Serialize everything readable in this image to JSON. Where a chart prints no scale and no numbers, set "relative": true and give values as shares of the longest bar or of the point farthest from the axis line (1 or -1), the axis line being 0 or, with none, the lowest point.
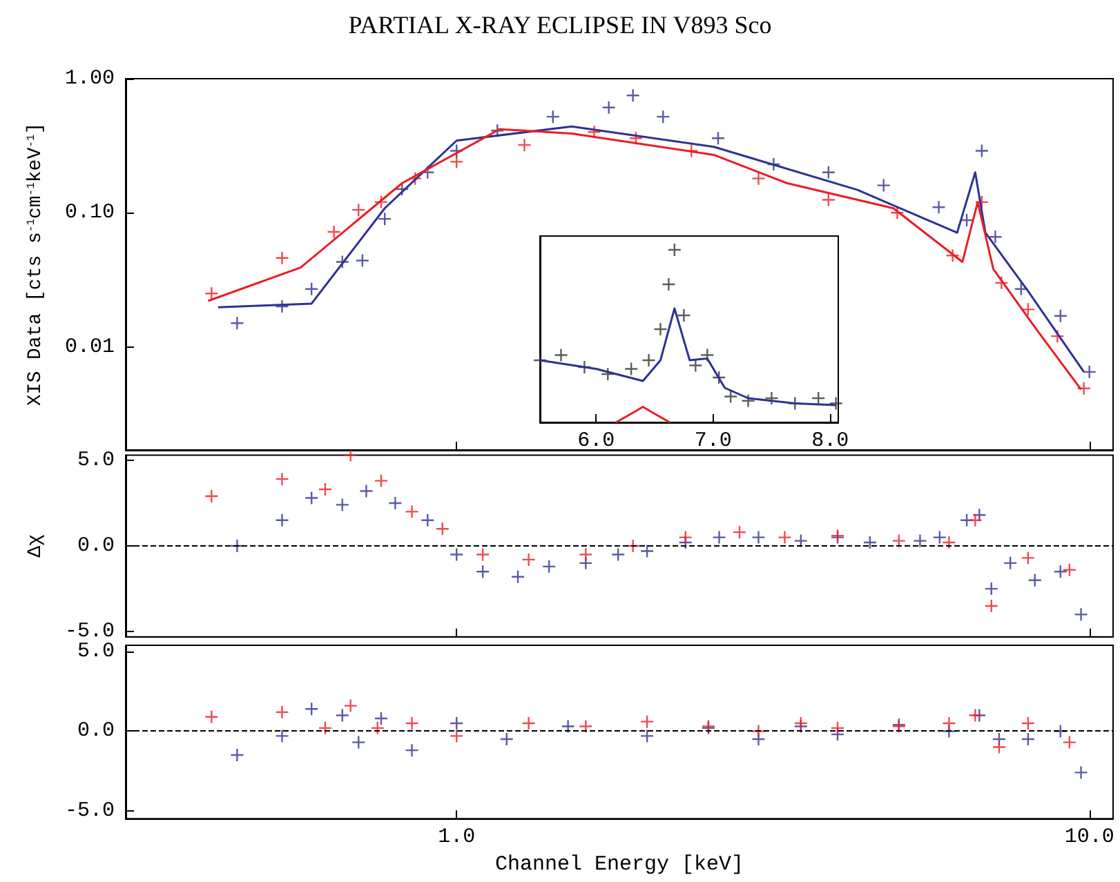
{
  "chart_data": [
    {
      "type": "line",
      "title": "PARTIAL X-RAY ECLIPSE IN V893 Sco",
      "ylabel": "XIS Data [cts s$^{-1}$cm$^{-1}$keV$^{-1}$]",
      "log": "xy",
      "xlim": [
        0.3,
        10.9
      ],
      "ylim": [
        0.0017,
        1.0
      ],
      "xticks": [
        {
          "value": 1,
          "label": null
        },
        {
          "value": 10,
          "label": null
        }
      ],
      "yticks": [
        {
          "value": 1,
          "label": "1.00"
        },
        {
          "value": 0.1,
          "label": "0.10"
        },
        {
          "value": 0.01,
          "label": "0.01"
        }
      ],
      "tick_labels": "y",
      "grid": false,
      "series": [
        {
          "type": "scatter",
          "marker": "cross",
          "color": "#2e3192",
          "x": [
            0.45,
            0.53,
            0.59,
            0.66,
            0.71,
            0.77,
            0.82,
            0.9,
            1.0,
            1.16,
            1.42,
            1.74,
            1.9,
            2.12,
            2.59,
            3.17,
            3.87,
            4.73,
            5.78,
            6.4,
            6.76,
            7.1,
            7.8,
            9.0,
            10.0
          ],
          "values": [
            0.015,
            0.02,
            0.027,
            0.043,
            0.044,
            0.09,
            0.15,
            0.2,
            0.29,
            0.41,
            0.52,
            0.61,
            0.75,
            0.52,
            0.36,
            0.23,
            0.2,
            0.16,
            0.11,
            0.088,
            0.29,
            0.066,
            0.027,
            0.017,
            0.0065
          ]
        },
        {
          "type": "scatter",
          "marker": "cross",
          "color": "#ed1c24",
          "x": [
            0.41,
            0.53,
            0.64,
            0.7,
            0.76,
            0.86,
            1.0,
            1.28,
            1.65,
            1.92,
            2.35,
            3.0,
            3.87,
            4.97,
            6.08,
            6.76,
            7.26,
            8.0,
            8.9,
            9.8
          ],
          "values": [
            0.025,
            0.046,
            0.072,
            0.105,
            0.12,
            0.18,
            0.24,
            0.32,
            0.4,
            0.36,
            0.29,
            0.18,
            0.125,
            0.1,
            0.048,
            0.12,
            0.03,
            0.019,
            0.012,
            0.0049
          ]
        },
        {
          "marker": "none",
          "color": "#2e3192",
          "x": [
            0.42,
            0.59,
            0.77,
            1.0,
            1.52,
            2.55,
            4.3,
            6.18,
            6.6,
            6.85,
            8.0,
            9.8
          ],
          "values": [
            0.0197,
            0.021,
            0.108,
            0.345,
            0.44,
            0.31,
            0.148,
            0.071,
            0.2,
            0.071,
            0.026,
            0.0065
          ]
        },
        {
          "marker": "none",
          "color": "#ed1c24",
          "x": [
            0.405,
            0.567,
            0.82,
            1.17,
            1.52,
            2.55,
            3.33,
            4.9,
            6.3,
            6.66,
            7.05,
            8.2,
            9.7
          ],
          "values": [
            0.022,
            0.039,
            0.166,
            0.42,
            0.39,
            0.27,
            0.166,
            0.108,
            0.043,
            0.12,
            0.038,
            0.014,
            0.0048
          ]
        }
      ]
    },
    {
      "type": "line",
      "relative": true,
      "xlim": [
        5.52,
        8.07
      ],
      "xticks": [
        {
          "value": 6,
          "label": "6.0"
        },
        {
          "value": 7,
          "label": "7.0"
        },
        {
          "value": 8,
          "label": "8.0"
        }
      ],
      "tick_labels": "x",
      "grid": false,
      "series": [
        {
          "type": "scatter",
          "marker": "cross",
          "color": "#333333",
          "x": [
            5.52,
            5.7,
            5.9,
            6.1,
            6.3,
            6.45,
            6.55,
            6.62,
            6.67,
            6.75,
            6.85,
            6.95,
            7.05,
            7.15,
            7.3,
            7.5,
            7.7,
            7.9,
            8.05
          ],
          "values": [
            0.36,
            0.39,
            0.32,
            0.28,
            0.31,
            0.36,
            0.54,
            0.8,
            1.0,
            0.62,
            0.33,
            0.39,
            0.26,
            0.15,
            0.125,
            0.14,
            0.11,
            0.14,
            0.11
          ]
        },
        {
          "marker": "none",
          "color": "#2e3192",
          "x": [
            5.52,
            6.0,
            6.4,
            6.55,
            6.67,
            6.8,
            6.95,
            7.1,
            7.3,
            7.7,
            8.05
          ],
          "values": [
            0.36,
            0.31,
            0.24,
            0.36,
            0.66,
            0.36,
            0.37,
            0.2,
            0.14,
            0.11,
            0.1
          ]
        },
        {
          "marker": "none",
          "color": "#ed1c24",
          "x": [
            6.17,
            6.3,
            6.4,
            6.5,
            6.63
          ],
          "values": [
            0,
            0.05,
            0.09,
            0.05,
            0
          ]
        }
      ]
    },
    {
      "type": "scatter",
      "ylabel": "Δχ",
      "log": "x",
      "xlim": [
        0.3,
        10.9
      ],
      "ylim": [
        -5.3,
        5.3
      ],
      "xticks": [
        {
          "value": 1,
          "label": null
        },
        {
          "value": 10,
          "label": null
        }
      ],
      "yticks": [
        {
          "value": 5,
          "label": "5.0"
        },
        {
          "value": 0,
          "label": "0.0"
        },
        {
          "value": -5,
          "label": "-5.0"
        }
      ],
      "tick_labels": "y",
      "grid": false,
      "ref_lines": [
        {
          "axis": "y",
          "value": 0,
          "color": "#000000",
          "line_style": "dashed"
        }
      ],
      "series": [
        {
          "marker": "cross",
          "color": "#2e3192",
          "x": [
            0.45,
            0.53,
            0.59,
            0.66,
            0.72,
            0.8,
            0.9,
            1.0,
            1.1,
            1.25,
            1.4,
            1.6,
            1.8,
            2.0,
            2.3,
            2.6,
            3.0,
            3.5,
            4.0,
            4.5,
            5.4,
            5.8,
            6.4,
            6.7,
            7.0,
            7.5,
            8.2,
            9.0,
            9.7
          ],
          "values": [
            0,
            1.5,
            2.8,
            2.4,
            3.2,
            2.5,
            1.5,
            -0.5,
            -1.5,
            -1.8,
            -1.2,
            -1.0,
            -0.5,
            -0.3,
            0.2,
            0.5,
            0.5,
            0.3,
            0.5,
            0.2,
            0.3,
            0.5,
            1.5,
            1.8,
            -2.5,
            -1.0,
            -2.0,
            -1.5,
            -4.0
          ]
        },
        {
          "marker": "cross",
          "color": "#ed1c24",
          "x": [
            0.41,
            0.53,
            0.62,
            0.68,
            0.76,
            0.85,
            0.95,
            1.1,
            1.3,
            1.6,
            1.9,
            2.3,
            2.8,
            3.3,
            4.0,
            5.0,
            6.0,
            6.6,
            7.0,
            8.0,
            9.3
          ],
          "values": [
            2.9,
            3.9,
            3.3,
            5.3,
            3.8,
            2.0,
            1.0,
            -0.5,
            -0.8,
            -0.5,
            0.0,
            0.5,
            0.8,
            0.5,
            0.6,
            0.3,
            0.2,
            1.5,
            -3.5,
            -0.7,
            -1.4
          ]
        }
      ]
    },
    {
      "type": "scatter",
      "xlabel": "Channel Energy [keV]",
      "log": "x",
      "xlim": [
        0.3,
        10.9
      ],
      "ylim": [
        -5.5,
        5.4
      ],
      "xticks": [
        {
          "value": 1,
          "label": "1.0"
        },
        {
          "value": 10,
          "label": "10.0"
        }
      ],
      "yticks": [
        {
          "value": 5,
          "label": "5.0"
        },
        {
          "value": 0,
          "label": "0.0"
        },
        {
          "value": -5,
          "label": "-5.0"
        }
      ],
      "grid": false,
      "ref_lines": [
        {
          "axis": "y",
          "value": 0,
          "color": "#000000",
          "line_style": "dashed"
        }
      ],
      "series": [
        {
          "marker": "cross",
          "color": "#2e3192",
          "x": [
            0.45,
            0.53,
            0.59,
            0.66,
            0.7,
            0.76,
            0.85,
            1.0,
            1.2,
            1.5,
            2.0,
            2.5,
            3.0,
            3.5,
            4.0,
            5.0,
            6.0,
            6.7,
            7.2,
            8.0,
            9.0,
            9.7
          ],
          "values": [
            -1.5,
            -0.3,
            1.4,
            1.0,
            -0.7,
            0.8,
            -1.2,
            0.5,
            -0.5,
            0.3,
            -0.3,
            0.2,
            -0.5,
            0.3,
            -0.2,
            0.4,
            0.0,
            1.0,
            -0.5,
            -0.5,
            0.0,
            -2.6
          ]
        },
        {
          "marker": "cross",
          "color": "#ed1c24",
          "x": [
            0.41,
            0.53,
            0.62,
            0.68,
            0.75,
            0.85,
            1.0,
            1.3,
            1.6,
            2.0,
            2.5,
            3.0,
            3.5,
            4.0,
            5.0,
            6.0,
            6.6,
            7.2,
            8.0,
            9.3
          ],
          "values": [
            0.9,
            1.2,
            0.2,
            1.6,
            0.2,
            0.5,
            -0.3,
            0.5,
            0.3,
            0.6,
            0.3,
            0.0,
            0.5,
            0.2,
            0.3,
            0.5,
            1.0,
            -1.0,
            0.5,
            -0.7
          ]
        }
      ]
    }
  ]
}
